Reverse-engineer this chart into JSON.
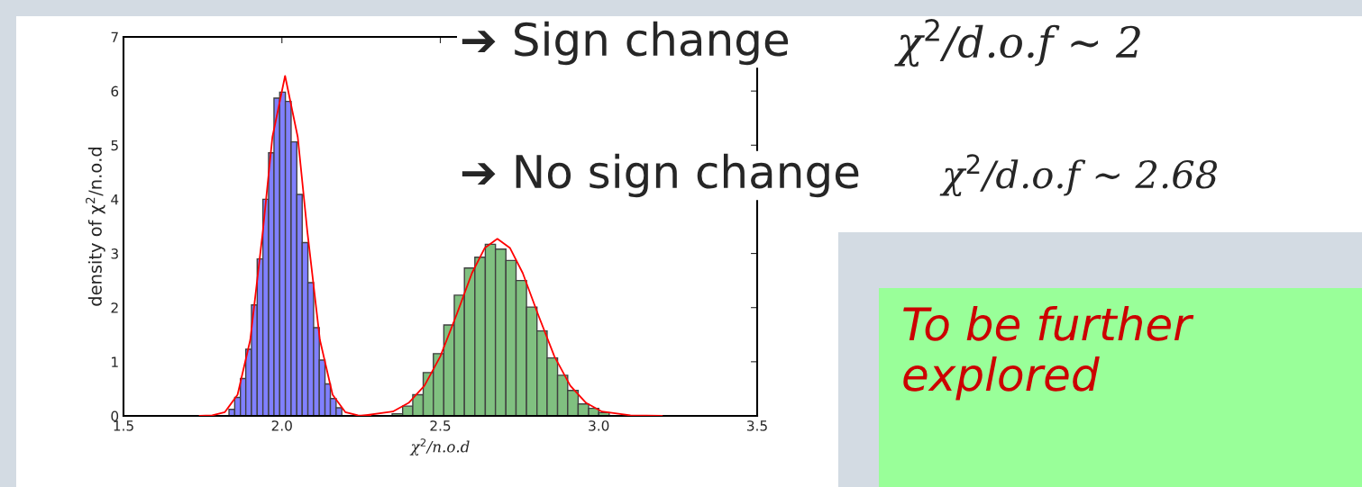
{
  "chart_data": {
    "type": "histogram",
    "xlabel": "χ$^{2}$/n.o.d",
    "ylabel": "density of χ$^{2}$/n.o.d",
    "xlim": [
      1.5,
      3.5
    ],
    "ylim": [
      0,
      7
    ],
    "xticks": [
      1.5,
      {
        "value": 2,
        "label": "2.0"
      },
      2.5,
      {
        "value": 3,
        "label": "3.0"
      },
      3.5
    ],
    "yticks": [
      0,
      1,
      2,
      3,
      4,
      5,
      6,
      7
    ],
    "grid": false,
    "series": [
      {
        "type": "histogram",
        "color": "#8080ff",
        "bins": [
          1.833,
          1.851,
          1.869,
          1.886,
          1.904,
          1.922,
          1.94,
          1.958,
          1.975,
          1.993,
          2.011,
          2.029,
          2.047,
          2.064,
          2.082,
          2.1,
          2.118,
          2.136,
          2.153,
          2.171,
          2.189
        ],
        "values": [
          0.12,
          0.34,
          0.69,
          1.23,
          2.05,
          2.9,
          4.0,
          4.86,
          5.87,
          5.98,
          5.81,
          5.06,
          4.09,
          3.2,
          2.46,
          1.63,
          1.03,
          0.59,
          0.32,
          0.15
        ]
      },
      {
        "type": "histogram",
        "color": "#80c080",
        "bins": [
          2.348,
          2.381,
          2.413,
          2.446,
          2.478,
          2.511,
          2.544,
          2.576,
          2.609,
          2.642,
          2.674,
          2.707,
          2.739,
          2.772,
          2.805,
          2.837,
          2.87,
          2.902,
          2.935,
          2.968,
          3.0,
          3.033
        ],
        "values": [
          0.04,
          0.18,
          0.39,
          0.8,
          1.15,
          1.68,
          2.23,
          2.73,
          2.93,
          3.17,
          3.08,
          2.87,
          2.5,
          2.01,
          1.57,
          1.07,
          0.75,
          0.47,
          0.22,
          0.14,
          0.06
        ]
      },
      {
        "type": "line",
        "color": "#ff0000",
        "x": [
          1.74,
          1.78,
          1.82,
          1.86,
          1.9,
          1.94,
          1.97,
          2.01,
          2.05,
          2.08,
          2.12,
          2.16,
          2.2,
          2.24,
          2.28
        ],
        "values": [
          0.0,
          0.01,
          0.07,
          0.39,
          1.4,
          3.42,
          5.15,
          6.28,
          5.15,
          3.42,
          1.4,
          0.39,
          0.07,
          0.01,
          0.0
        ]
      },
      {
        "type": "line",
        "color": "#ff0000",
        "x": [
          2.25,
          2.35,
          2.4,
          2.45,
          2.5,
          2.55,
          2.6,
          2.64,
          2.68,
          2.72,
          2.76,
          2.81,
          2.86,
          2.91,
          2.96,
          3.01,
          3.1,
          3.2
        ],
        "values": [
          0.0,
          0.08,
          0.24,
          0.56,
          1.1,
          1.85,
          2.64,
          3.1,
          3.27,
          3.1,
          2.64,
          1.85,
          1.1,
          0.56,
          0.24,
          0.08,
          0.01,
          0.0
        ]
      }
    ],
    "annotations": [
      "➔ Sign change",
      "χ$^{2}$/d.o.f ∼ 2",
      "➔ No sign change",
      "χ$^{2}$/d.o.f ∼ 2.68",
      "To be further explored"
    ]
  }
}
